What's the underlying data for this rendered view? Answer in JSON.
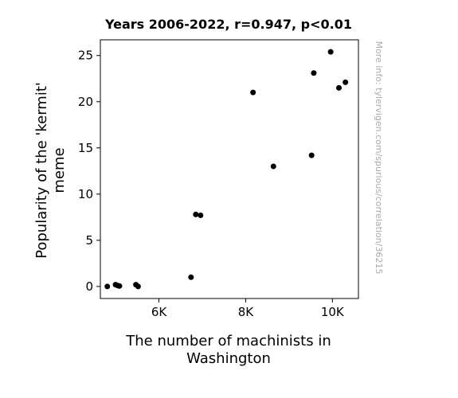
{
  "chart_data": {
    "type": "scatter",
    "title": "Years 2006-2022, r=0.947, p<0.01",
    "xlabel_lines": [
      "The number of machinists in",
      "Washington"
    ],
    "ylabel_lines": [
      "Popularity of the 'kermit'",
      "meme"
    ],
    "watermark": "More info: tylervigen.com/spurious/correlation/36215",
    "xlim": [
      4650,
      10600
    ],
    "ylim": [
      -1.3,
      26.7
    ],
    "x_ticks": [
      {
        "value": 6000,
        "label": "6K"
      },
      {
        "value": 8000,
        "label": "8K"
      },
      {
        "value": 10000,
        "label": "10K"
      }
    ],
    "y_ticks": [
      {
        "value": 0,
        "label": "0"
      },
      {
        "value": 5,
        "label": "5"
      },
      {
        "value": 10,
        "label": "10"
      },
      {
        "value": 15,
        "label": "15"
      },
      {
        "value": 20,
        "label": "20"
      },
      {
        "value": 25,
        "label": "25"
      }
    ],
    "marker_color": "#000000",
    "points": [
      {
        "x": 4810,
        "y": 0.0
      },
      {
        "x": 5000,
        "y": 0.2
      },
      {
        "x": 5050,
        "y": 0.1
      },
      {
        "x": 5090,
        "y": 0.05
      },
      {
        "x": 5470,
        "y": 0.2
      },
      {
        "x": 5520,
        "y": 0.0
      },
      {
        "x": 6740,
        "y": 1.0
      },
      {
        "x": 6850,
        "y": 7.8
      },
      {
        "x": 6960,
        "y": 7.7
      },
      {
        "x": 8170,
        "y": 21.0
      },
      {
        "x": 8640,
        "y": 13.0
      },
      {
        "x": 9520,
        "y": 14.2
      },
      {
        "x": 9570,
        "y": 23.1
      },
      {
        "x": 9960,
        "y": 25.4
      },
      {
        "x": 10150,
        "y": 21.5
      },
      {
        "x": 10300,
        "y": 22.1
      }
    ]
  }
}
